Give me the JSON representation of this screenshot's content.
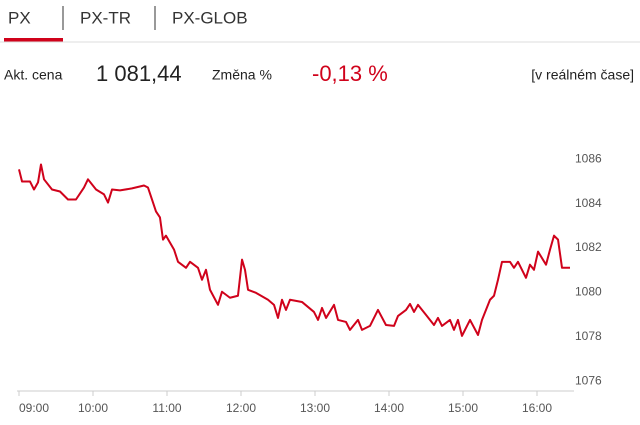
{
  "tabs": [
    "PX",
    "PX-TR",
    "PX-GLOB"
  ],
  "info": {
    "price_label": "Akt. cena",
    "price": "1 081,44",
    "change_label": "Změna %",
    "change": "-0,13 %",
    "realtime": "[v reálném čase]"
  },
  "chart_data": {
    "type": "line",
    "x": [
      9.0,
      9.041,
      9.149,
      9.203,
      9.257,
      9.297,
      9.338,
      9.446,
      9.554,
      9.662,
      9.77,
      9.878,
      9.932,
      10.041,
      10.149,
      10.203,
      10.257,
      10.365,
      10.527,
      10.689,
      10.743,
      10.797,
      10.851,
      10.905,
      10.946,
      10.986,
      11.095,
      11.149,
      11.257,
      11.311,
      11.419,
      11.473,
      11.527,
      11.581,
      11.689,
      11.743,
      11.851,
      11.959,
      12.014,
      12.054,
      12.095,
      12.203,
      12.365,
      12.446,
      12.5,
      12.554,
      12.608,
      12.662,
      12.824,
      12.986,
      13.041,
      13.095,
      13.149,
      13.257,
      13.311,
      13.419,
      13.473,
      13.581,
      13.635,
      13.743,
      13.851,
      13.959,
      14.068,
      14.122,
      14.23,
      14.284,
      14.338,
      14.392,
      14.5,
      14.608,
      14.662,
      14.716,
      14.824,
      14.878,
      14.932,
      14.986,
      15.095,
      15.203,
      15.257,
      15.365,
      15.419,
      15.473,
      15.527,
      15.635,
      15.689,
      15.743,
      15.851,
      15.905,
      15.959,
      16.014,
      16.122,
      16.176,
      16.23,
      16.284,
      16.338,
      16.446
    ],
    "series": [
      {
        "color": "#d0021b",
        "values": [
          1085.55,
          1085.0,
          1085.0,
          1084.64,
          1084.96,
          1085.77,
          1085.1,
          1084.64,
          1084.55,
          1084.19,
          1084.19,
          1084.73,
          1085.1,
          1084.64,
          1084.42,
          1084.05,
          1084.64,
          1084.6,
          1084.69,
          1084.82,
          1084.73,
          1084.19,
          1083.65,
          1083.38,
          1082.38,
          1082.56,
          1081.93,
          1081.38,
          1081.11,
          1081.38,
          1081.11,
          1080.57,
          1081.02,
          1080.12,
          1079.44,
          1080.03,
          1079.76,
          1079.85,
          1081.48,
          1081.02,
          1080.12,
          1079.98,
          1079.67,
          1079.44,
          1078.85,
          1079.67,
          1079.21,
          1079.67,
          1079.57,
          1079.12,
          1078.76,
          1079.3,
          1078.85,
          1079.44,
          1078.76,
          1078.67,
          1078.31,
          1078.76,
          1078.31,
          1078.49,
          1079.21,
          1078.53,
          1078.49,
          1078.94,
          1079.21,
          1079.48,
          1079.12,
          1079.44,
          1078.99,
          1078.53,
          1078.85,
          1078.49,
          1078.76,
          1078.31,
          1078.76,
          1078.04,
          1078.76,
          1078.08,
          1078.76,
          1079.67,
          1079.85,
          1080.57,
          1081.38,
          1081.38,
          1081.11,
          1081.38,
          1080.66,
          1081.25,
          1081.02,
          1081.84,
          1081.25,
          1081.93,
          1082.56,
          1082.38,
          1081.11,
          1081.11
        ]
      }
    ],
    "xlim": [
      9,
      16.5
    ],
    "xticks": [
      {
        "value": 9,
        "label": "09:00"
      },
      {
        "value": 10,
        "label": "10:00"
      },
      {
        "value": 11,
        "label": "11:00"
      },
      {
        "value": 12,
        "label": "12:00"
      },
      {
        "value": 13,
        "label": "13:00"
      },
      {
        "value": 14,
        "label": "14:00"
      },
      {
        "value": 15,
        "label": "15:00"
      },
      {
        "value": 16,
        "label": "16:00"
      }
    ],
    "ylim": [
      1075.6,
      1088
    ],
    "yticks": [
      1076,
      1078,
      1080,
      1082,
      1084,
      1086
    ],
    "grid": false
  }
}
